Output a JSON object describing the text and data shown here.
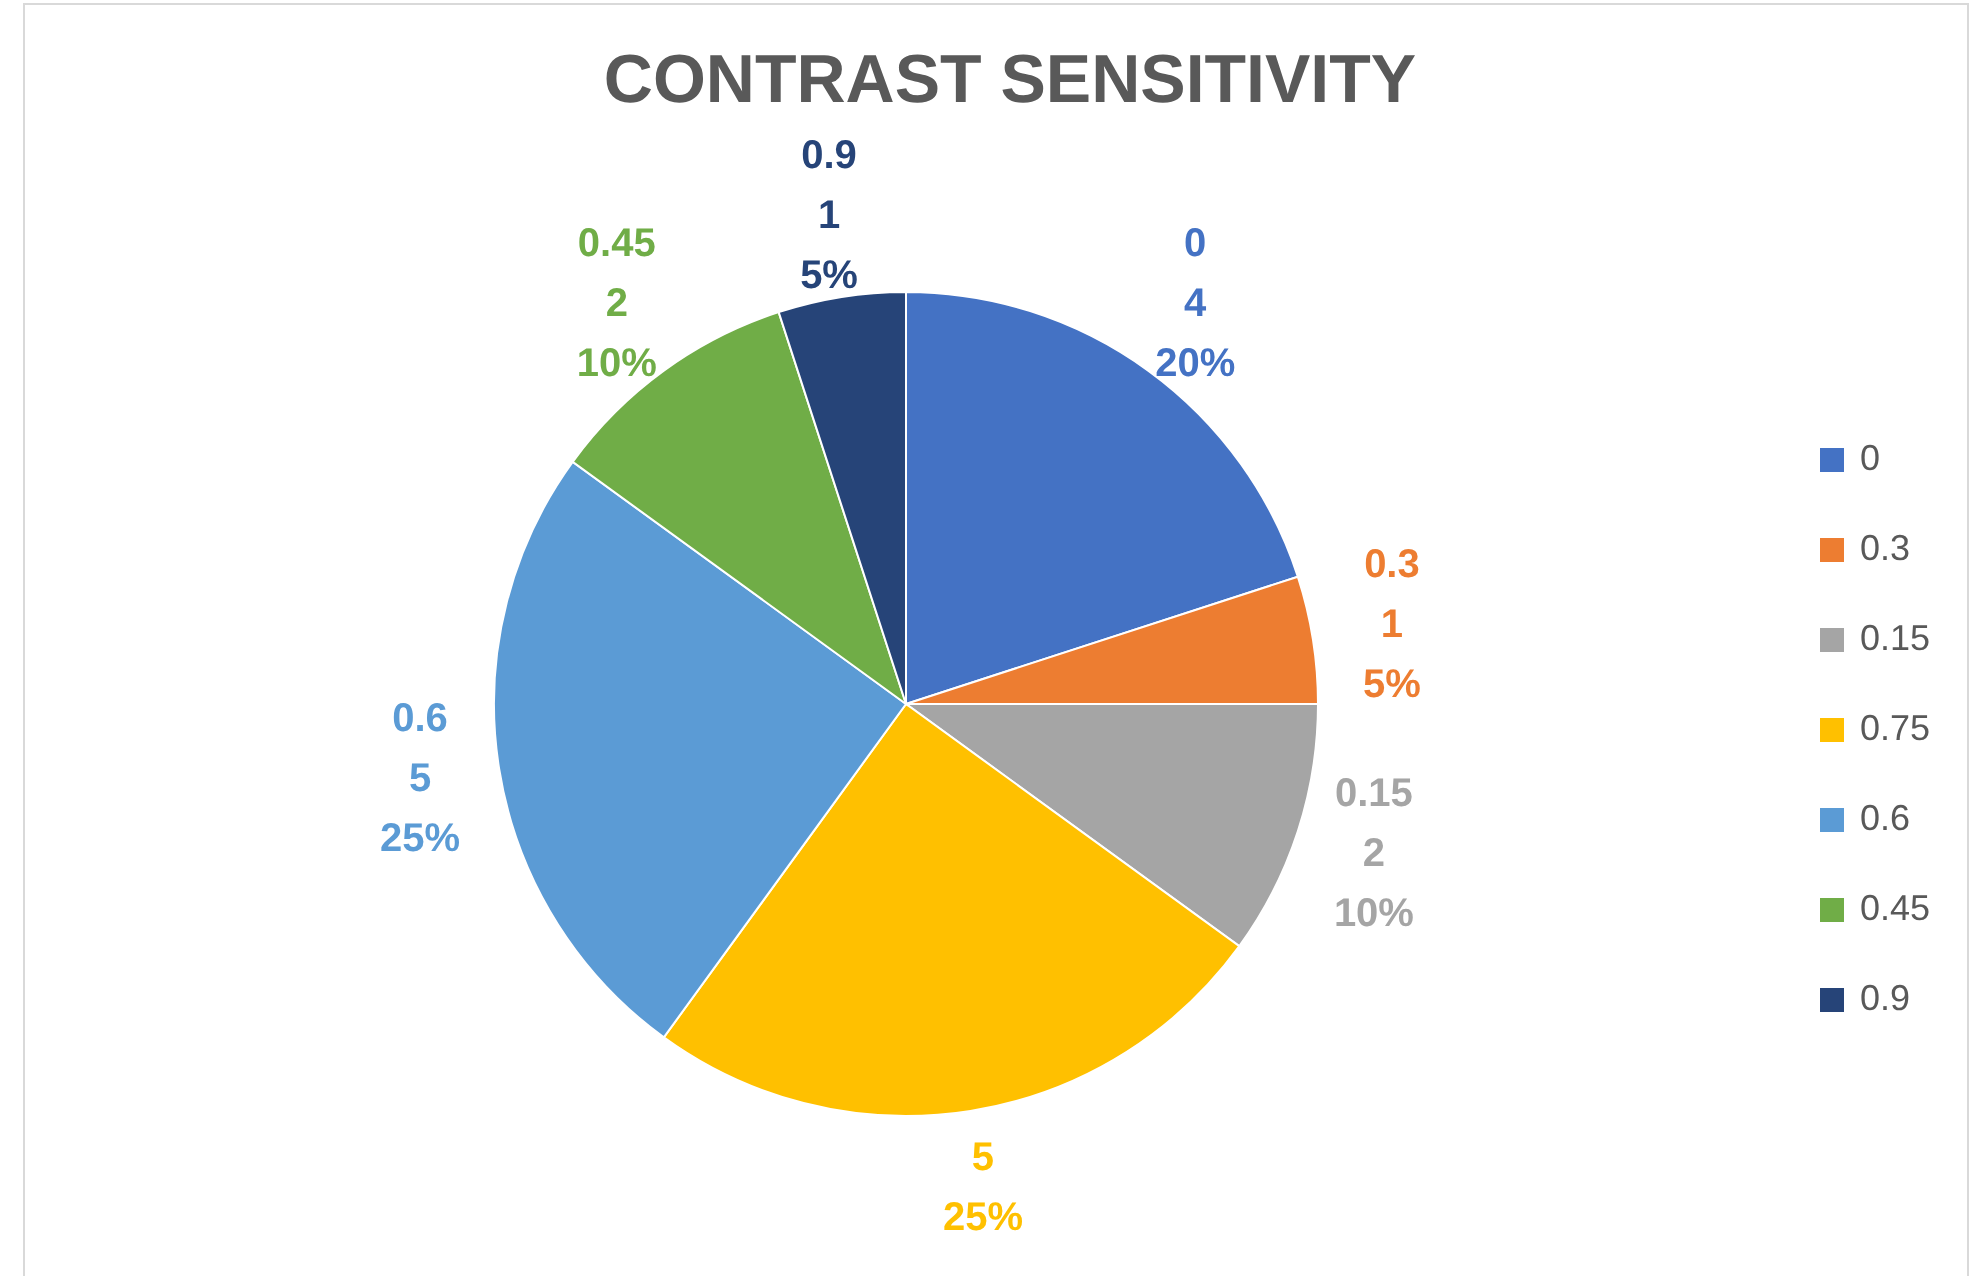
{
  "chart_data": {
    "type": "pie",
    "title": "CONTRAST SENSITIVITY",
    "categories": [
      "0",
      "0.3",
      "0.15",
      "0.75",
      "0.6",
      "0.45",
      "0.9"
    ],
    "values": [
      4,
      1,
      2,
      5,
      5,
      2,
      1
    ],
    "colors": [
      "#4472c4",
      "#ed7d31",
      "#a5a5a5",
      "#ffc000",
      "#5b9bd5",
      "#70ad47",
      "#264478"
    ],
    "value_labels": [
      "0\n4\n20%",
      "0.3\n1\n5%",
      "0.15\n2\n10%",
      "5\n25%",
      "0.6\n5\n25%",
      "0.45\n2\n10%",
      "0.9\n1\n5%"
    ],
    "legend": "right"
  }
}
